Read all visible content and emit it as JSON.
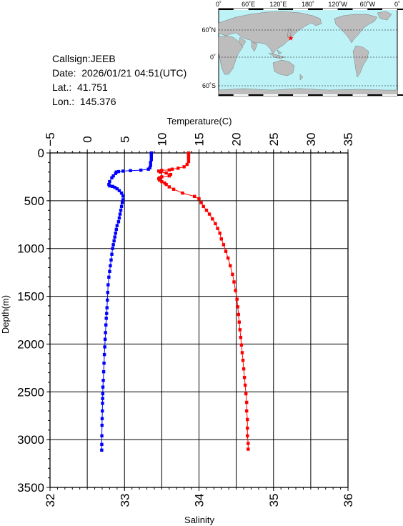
{
  "info": {
    "callsign": "Callsign:JEEB",
    "date": "Date:  2026/01/21 04:51(UTC)",
    "lat": "Lat.:  41.751",
    "lon": "Lon.:  145.376"
  },
  "map": {
    "lon_labels": [
      "0˚",
      "60˚E",
      "120˚E",
      "180˚",
      "120˚W",
      "60˚W",
      "0˚"
    ],
    "lat_labels": [
      "60˚N",
      "0˚",
      "60˚S"
    ],
    "ocean_color": "#bdf3f7",
    "land_color": "#bdbdbd",
    "marker_color": "#ff0000",
    "marker_lat": 41.751,
    "marker_lon": 145.376
  },
  "chart_data": {
    "type": "scatter",
    "ylabel": "Depth(m)",
    "top_xlabel": "Temperature(C)",
    "bottom_xlabel": "Salinity",
    "depth_range": [
      0,
      3500
    ],
    "depth_ticks": [
      "0",
      "500",
      "1000",
      "1500",
      "2000",
      "2500",
      "3000",
      "3500"
    ],
    "temperature_range": [
      -5,
      35
    ],
    "temperature_ticks": [
      "−5",
      "0",
      "5",
      "10",
      "15",
      "20",
      "25",
      "30",
      "35"
    ],
    "salinity_range": [
      32,
      36
    ],
    "salinity_ticks": [
      "32",
      "33",
      "34",
      "35",
      "36"
    ],
    "grid": true,
    "series": [
      {
        "axis": "temperature",
        "color": "#0000ff",
        "points": [
          [
            8.6,
            0
          ],
          [
            8.6,
            10
          ],
          [
            8.6,
            25
          ],
          [
            8.6,
            45
          ],
          [
            8.6,
            70
          ],
          [
            8.5,
            100
          ],
          [
            8.5,
            130
          ],
          [
            8.4,
            155
          ],
          [
            8.2,
            170
          ],
          [
            7.2,
            180
          ],
          [
            5.8,
            185
          ],
          [
            4.8,
            190
          ],
          [
            4.2,
            195
          ],
          [
            3.9,
            200
          ],
          [
            3.8,
            215
          ],
          [
            3.5,
            240
          ],
          [
            3.3,
            260
          ],
          [
            3.0,
            300
          ],
          [
            2.9,
            330
          ],
          [
            3.0,
            345
          ],
          [
            3.4,
            350
          ],
          [
            3.7,
            360
          ],
          [
            4.0,
            375
          ],
          [
            4.3,
            395
          ],
          [
            4.6,
            420
          ],
          [
            4.8,
            450
          ],
          [
            4.8,
            490
          ],
          [
            4.7,
            520
          ],
          [
            4.6,
            560
          ],
          [
            4.5,
            600
          ],
          [
            4.4,
            640
          ],
          [
            4.3,
            680
          ],
          [
            4.2,
            720
          ],
          [
            4.0,
            760
          ],
          [
            3.9,
            800
          ],
          [
            3.8,
            840
          ],
          [
            3.7,
            880
          ],
          [
            3.6,
            920
          ],
          [
            3.5,
            960
          ],
          [
            3.4,
            1000
          ],
          [
            3.3,
            1060
          ],
          [
            3.2,
            1120
          ],
          [
            3.1,
            1180
          ],
          [
            3.0,
            1240
          ],
          [
            2.9,
            1300
          ],
          [
            2.8,
            1380
          ],
          [
            2.75,
            1460
          ],
          [
            2.7,
            1540
          ],
          [
            2.65,
            1620
          ],
          [
            2.6,
            1680
          ],
          [
            2.55,
            1730
          ],
          [
            2.5,
            1800
          ],
          [
            2.45,
            1880
          ],
          [
            2.4,
            1950
          ],
          [
            2.35,
            2030
          ],
          [
            2.3,
            2110
          ],
          [
            2.25,
            2200
          ],
          [
            2.2,
            2290
          ],
          [
            2.15,
            2380
          ],
          [
            2.1,
            2450
          ],
          [
            2.08,
            2520
          ],
          [
            2.06,
            2570
          ],
          [
            2.05,
            2620
          ],
          [
            2.03,
            2700
          ],
          [
            2.0,
            2780
          ],
          [
            1.98,
            2850
          ],
          [
            1.96,
            2960
          ],
          [
            1.95,
            3050
          ],
          [
            1.94,
            3110
          ]
        ]
      },
      {
        "axis": "salinity",
        "color": "#ff0000",
        "points": [
          [
            33.86,
            0
          ],
          [
            33.86,
            15
          ],
          [
            33.86,
            35
          ],
          [
            33.86,
            60
          ],
          [
            33.86,
            90
          ],
          [
            33.84,
            120
          ],
          [
            33.8,
            145
          ],
          [
            33.72,
            160
          ],
          [
            33.64,
            170
          ],
          [
            33.6,
            178
          ],
          [
            33.5,
            182
          ],
          [
            33.46,
            190
          ],
          [
            33.48,
            200
          ],
          [
            33.56,
            210
          ],
          [
            33.62,
            225
          ],
          [
            33.6,
            240
          ],
          [
            33.5,
            250
          ],
          [
            33.47,
            260
          ],
          [
            33.46,
            270
          ],
          [
            33.47,
            285
          ],
          [
            33.5,
            300
          ],
          [
            33.54,
            315
          ],
          [
            33.56,
            330
          ],
          [
            33.6,
            355
          ],
          [
            33.66,
            380
          ],
          [
            33.78,
            420
          ],
          [
            33.94,
            455
          ],
          [
            34.0,
            480
          ],
          [
            34.03,
            520
          ],
          [
            34.06,
            560
          ],
          [
            34.1,
            600
          ],
          [
            34.14,
            640
          ],
          [
            34.18,
            690
          ],
          [
            34.22,
            740
          ],
          [
            34.25,
            790
          ],
          [
            34.28,
            840
          ],
          [
            34.3,
            900
          ],
          [
            34.33,
            960
          ],
          [
            34.36,
            1030
          ],
          [
            34.39,
            1100
          ],
          [
            34.42,
            1180
          ],
          [
            34.45,
            1270
          ],
          [
            34.47,
            1350
          ],
          [
            34.49,
            1440
          ],
          [
            34.51,
            1530
          ],
          [
            34.52,
            1610
          ],
          [
            34.53,
            1690
          ],
          [
            34.54,
            1770
          ],
          [
            34.55,
            1850
          ],
          [
            34.56,
            1930
          ],
          [
            34.57,
            2010
          ],
          [
            34.58,
            2090
          ],
          [
            34.59,
            2170
          ],
          [
            34.6,
            2260
          ],
          [
            34.61,
            2350
          ],
          [
            34.62,
            2430
          ],
          [
            34.63,
            2520
          ],
          [
            34.64,
            2610
          ],
          [
            34.64,
            2700
          ],
          [
            34.65,
            2790
          ],
          [
            34.65,
            2880
          ],
          [
            34.65,
            2960
          ],
          [
            34.66,
            3040
          ],
          [
            34.66,
            3100
          ]
        ]
      }
    ]
  }
}
